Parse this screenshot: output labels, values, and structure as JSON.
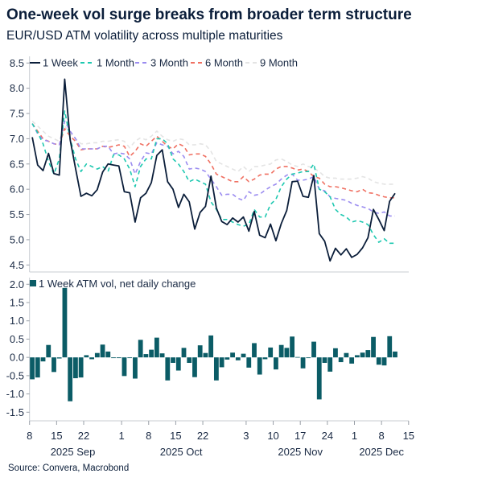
{
  "title": "One-week vol surge breaks from broader term structure",
  "subtitle": "EUR/USD ATM volatility across multiple maturities",
  "source": "Source: Convera, Macrobond",
  "chart_data": [
    {
      "type": "line",
      "dates": [
        "2025-09-08",
        "2025-09-09",
        "2025-09-10",
        "2025-09-11",
        "2025-09-12",
        "2025-09-15",
        "2025-09-16",
        "2025-09-17",
        "2025-09-18",
        "2025-09-19",
        "2025-09-22",
        "2025-09-23",
        "2025-09-24",
        "2025-09-25",
        "2025-09-26",
        "2025-09-29",
        "2025-09-30",
        "2025-10-01",
        "2025-10-02",
        "2025-10-03",
        "2025-10-06",
        "2025-10-07",
        "2025-10-08",
        "2025-10-09",
        "2025-10-10",
        "2025-10-13",
        "2025-10-14",
        "2025-10-15",
        "2025-10-16",
        "2025-10-17",
        "2025-10-20",
        "2025-10-21",
        "2025-10-22",
        "2025-10-23",
        "2025-10-24",
        "2025-10-27",
        "2025-10-28",
        "2025-10-29",
        "2025-10-30",
        "2025-10-31",
        "2025-11-03",
        "2025-11-04",
        "2025-11-05",
        "2025-11-06",
        "2025-11-07",
        "2025-11-10",
        "2025-11-11",
        "2025-11-12",
        "2025-11-13",
        "2025-11-14",
        "2025-11-17",
        "2025-11-18",
        "2025-11-19",
        "2025-11-20",
        "2025-11-21",
        "2025-11-24",
        "2025-11-25",
        "2025-11-26",
        "2025-11-27",
        "2025-11-28",
        "2025-12-01",
        "2025-12-02",
        "2025-12-03",
        "2025-12-04",
        "2025-12-05",
        "2025-12-08",
        "2025-12-09",
        "2025-12-10"
      ],
      "ylim": [
        4.5,
        8.5
      ],
      "y_ticks": [
        "8.5",
        "8.0",
        "7.5",
        "7.0",
        "6.5",
        "6.0",
        "5.5",
        "5.0",
        "4.5"
      ],
      "legend_position": "top-left",
      "grid": false,
      "series": [
        {
          "name": "1 Week",
          "color": "#0b1e3a",
          "dashed": false,
          "values": [
            7.03,
            6.48,
            6.37,
            6.71,
            6.31,
            6.28,
            8.18,
            6.98,
            6.41,
            5.86,
            5.92,
            5.87,
            5.99,
            6.34,
            6.5,
            6.48,
            6.46,
            5.95,
            5.93,
            5.35,
            5.83,
            5.92,
            6.13,
            6.67,
            6.78,
            6.15,
            6.0,
            5.64,
            5.9,
            5.75,
            5.21,
            5.54,
            5.66,
            6.26,
            5.63,
            5.36,
            5.3,
            5.43,
            5.35,
            5.45,
            5.17,
            5.56,
            5.09,
            5.04,
            5.31,
            4.98,
            5.32,
            5.58,
            6.15,
            6.16,
            5.86,
            5.84,
            6.27,
            5.12,
            4.97,
            4.58,
            4.83,
            4.7,
            4.82,
            4.65,
            4.71,
            4.84,
            5.04,
            5.6,
            5.4,
            5.18,
            5.76,
            5.92
          ]
        },
        {
          "name": "1 Month",
          "color": "#1ec8b0",
          "dashed": true,
          "values": [
            7.3,
            7.12,
            6.9,
            6.55,
            6.3,
            6.6,
            7.55,
            7.0,
            6.6,
            6.35,
            6.5,
            6.45,
            6.4,
            6.45,
            6.35,
            6.68,
            6.68,
            6.6,
            6.4,
            6.05,
            6.45,
            6.6,
            6.6,
            7.0,
            7.0,
            6.9,
            6.6,
            6.5,
            6.35,
            6.15,
            6.2,
            6.15,
            6.1,
            5.75,
            5.6,
            5.4,
            5.4,
            5.35,
            5.3,
            5.27,
            5.3,
            5.6,
            5.45,
            5.45,
            5.7,
            5.8,
            6.05,
            6.2,
            6.3,
            6.32,
            6.35,
            6.35,
            6.5,
            6.0,
            5.95,
            5.85,
            5.6,
            5.5,
            5.45,
            5.35,
            5.38,
            5.35,
            5.3,
            5.1,
            4.95,
            5.02,
            4.93,
            4.93
          ]
        },
        {
          "name": "3 Month",
          "color": "#9b8cf0",
          "dashed": true,
          "values": [
            7.3,
            7.1,
            6.98,
            6.95,
            6.9,
            6.88,
            7.35,
            7.15,
            7.0,
            6.8,
            6.8,
            6.8,
            6.8,
            6.85,
            6.85,
            6.7,
            6.72,
            6.7,
            6.6,
            6.3,
            6.55,
            6.72,
            6.7,
            6.92,
            6.88,
            6.85,
            6.7,
            6.75,
            6.65,
            6.4,
            6.42,
            6.4,
            6.35,
            6.2,
            6.05,
            5.88,
            5.9,
            5.9,
            5.82,
            5.78,
            5.95,
            5.88,
            5.9,
            5.98,
            6.05,
            6.1,
            6.2,
            6.28,
            6.3,
            6.18,
            6.18,
            6.2,
            6.25,
            6.0,
            5.97,
            5.85,
            5.82,
            5.8,
            5.78,
            5.72,
            5.68,
            5.65,
            5.62,
            5.55,
            5.52,
            5.55,
            5.47,
            5.47
          ]
        },
        {
          "name": "6 Month",
          "color": "#f07062",
          "dashed": true,
          "values": [
            7.3,
            7.15,
            7.0,
            6.95,
            6.9,
            6.88,
            7.2,
            7.05,
            6.95,
            6.78,
            6.8,
            6.8,
            6.8,
            6.85,
            6.83,
            6.85,
            6.88,
            6.85,
            6.65,
            6.75,
            6.9,
            6.85,
            6.95,
            7.05,
            6.95,
            6.85,
            6.8,
            6.9,
            6.85,
            6.68,
            6.7,
            6.7,
            6.65,
            6.5,
            6.3,
            6.25,
            6.2,
            6.15,
            6.15,
            6.25,
            6.15,
            6.2,
            6.28,
            6.3,
            6.3,
            6.4,
            6.45,
            6.45,
            6.42,
            6.38,
            6.4,
            6.35,
            6.25,
            6.22,
            6.1,
            6.05,
            6.05,
            6.03,
            6.0,
            5.97,
            5.95,
            6.0,
            5.93,
            5.92,
            5.88,
            5.85,
            5.83,
            5.83
          ]
        },
        {
          "name": "9 Month",
          "color": "#e4e4e4",
          "dashed": true,
          "values": [
            7.35,
            7.25,
            7.15,
            7.05,
            7.0,
            6.95,
            7.25,
            7.1,
            7.0,
            6.9,
            6.9,
            6.92,
            6.92,
            6.95,
            6.95,
            6.97,
            6.98,
            6.95,
            6.82,
            6.95,
            7.02,
            6.98,
            7.05,
            7.15,
            7.05,
            6.98,
            6.95,
            7.0,
            6.98,
            6.88,
            6.88,
            6.9,
            6.88,
            6.75,
            6.55,
            6.5,
            6.45,
            6.4,
            6.35,
            6.45,
            6.35,
            6.45,
            6.45,
            6.48,
            6.5,
            6.58,
            6.6,
            6.55,
            6.48,
            6.45,
            6.5,
            6.45,
            6.42,
            6.35,
            6.25,
            6.22,
            6.22,
            6.2,
            6.2,
            6.2,
            6.22,
            6.25,
            6.22,
            6.15,
            6.12,
            6.1,
            6.1,
            6.1
          ]
        }
      ]
    },
    {
      "type": "bar",
      "ylim": [
        -1.5,
        2.0
      ],
      "y_ticks": [
        "2.0",
        "1.5",
        "1.0",
        "0.5",
        "0.0",
        "-0.5",
        "-1.0",
        "-1.5"
      ],
      "legend_position": "top-left",
      "grid": false,
      "series": [
        {
          "name": "1 Week ATM vol, net daily change",
          "color": "#0b5c66",
          "values": [
            -0.6,
            -0.55,
            -0.11,
            0.34,
            -0.4,
            -0.03,
            1.9,
            -1.2,
            -0.57,
            -0.55,
            0.06,
            -0.05,
            0.12,
            0.35,
            0.16,
            -0.02,
            -0.02,
            -0.51,
            -0.02,
            -0.58,
            0.48,
            0.09,
            0.21,
            0.54,
            0.11,
            -0.63,
            -0.15,
            -0.36,
            0.26,
            -0.15,
            -0.54,
            0.33,
            0.12,
            0.6,
            -0.63,
            -0.27,
            -0.06,
            0.13,
            -0.08,
            0.1,
            -0.28,
            0.39,
            -0.47,
            -0.05,
            0.27,
            -0.33,
            0.34,
            0.26,
            0.57,
            0.01,
            -0.3,
            -0.02,
            0.43,
            -1.15,
            -0.15,
            -0.39,
            0.25,
            -0.13,
            0.12,
            -0.17,
            0.06,
            0.13,
            0.2,
            0.56,
            -0.2,
            -0.22,
            0.58,
            0.16
          ]
        }
      ]
    }
  ],
  "x_axis": {
    "ticks": [
      {
        "label": "8",
        "date": "2025-09-08"
      },
      {
        "label": "15",
        "date": "2025-09-15"
      },
      {
        "label": "22",
        "date": "2025-09-22"
      },
      {
        "label": "1",
        "date": "2025-10-01"
      },
      {
        "label": "8",
        "date": "2025-10-08"
      },
      {
        "label": "15",
        "date": "2025-10-15"
      },
      {
        "label": "22",
        "date": "2025-10-22"
      },
      {
        "label": "3",
        "date": "2025-11-03"
      },
      {
        "label": "10",
        "date": "2025-11-10"
      },
      {
        "label": "17",
        "date": "2025-11-17"
      },
      {
        "label": "24",
        "date": "2025-11-24"
      },
      {
        "label": "1",
        "date": "2025-12-01"
      },
      {
        "label": "8",
        "date": "2025-12-08"
      },
      {
        "label": "15",
        "date": "2025-12-15"
      }
    ],
    "month_labels": [
      {
        "label": "2025 Sep",
        "date": "2025-09-18"
      },
      {
        "label": "2025 Oct",
        "date": "2025-10-16"
      },
      {
        "label": "2025 Nov",
        "date": "2025-11-17"
      },
      {
        "label": "2025 Dec",
        "date": "2025-12-08"
      }
    ]
  }
}
